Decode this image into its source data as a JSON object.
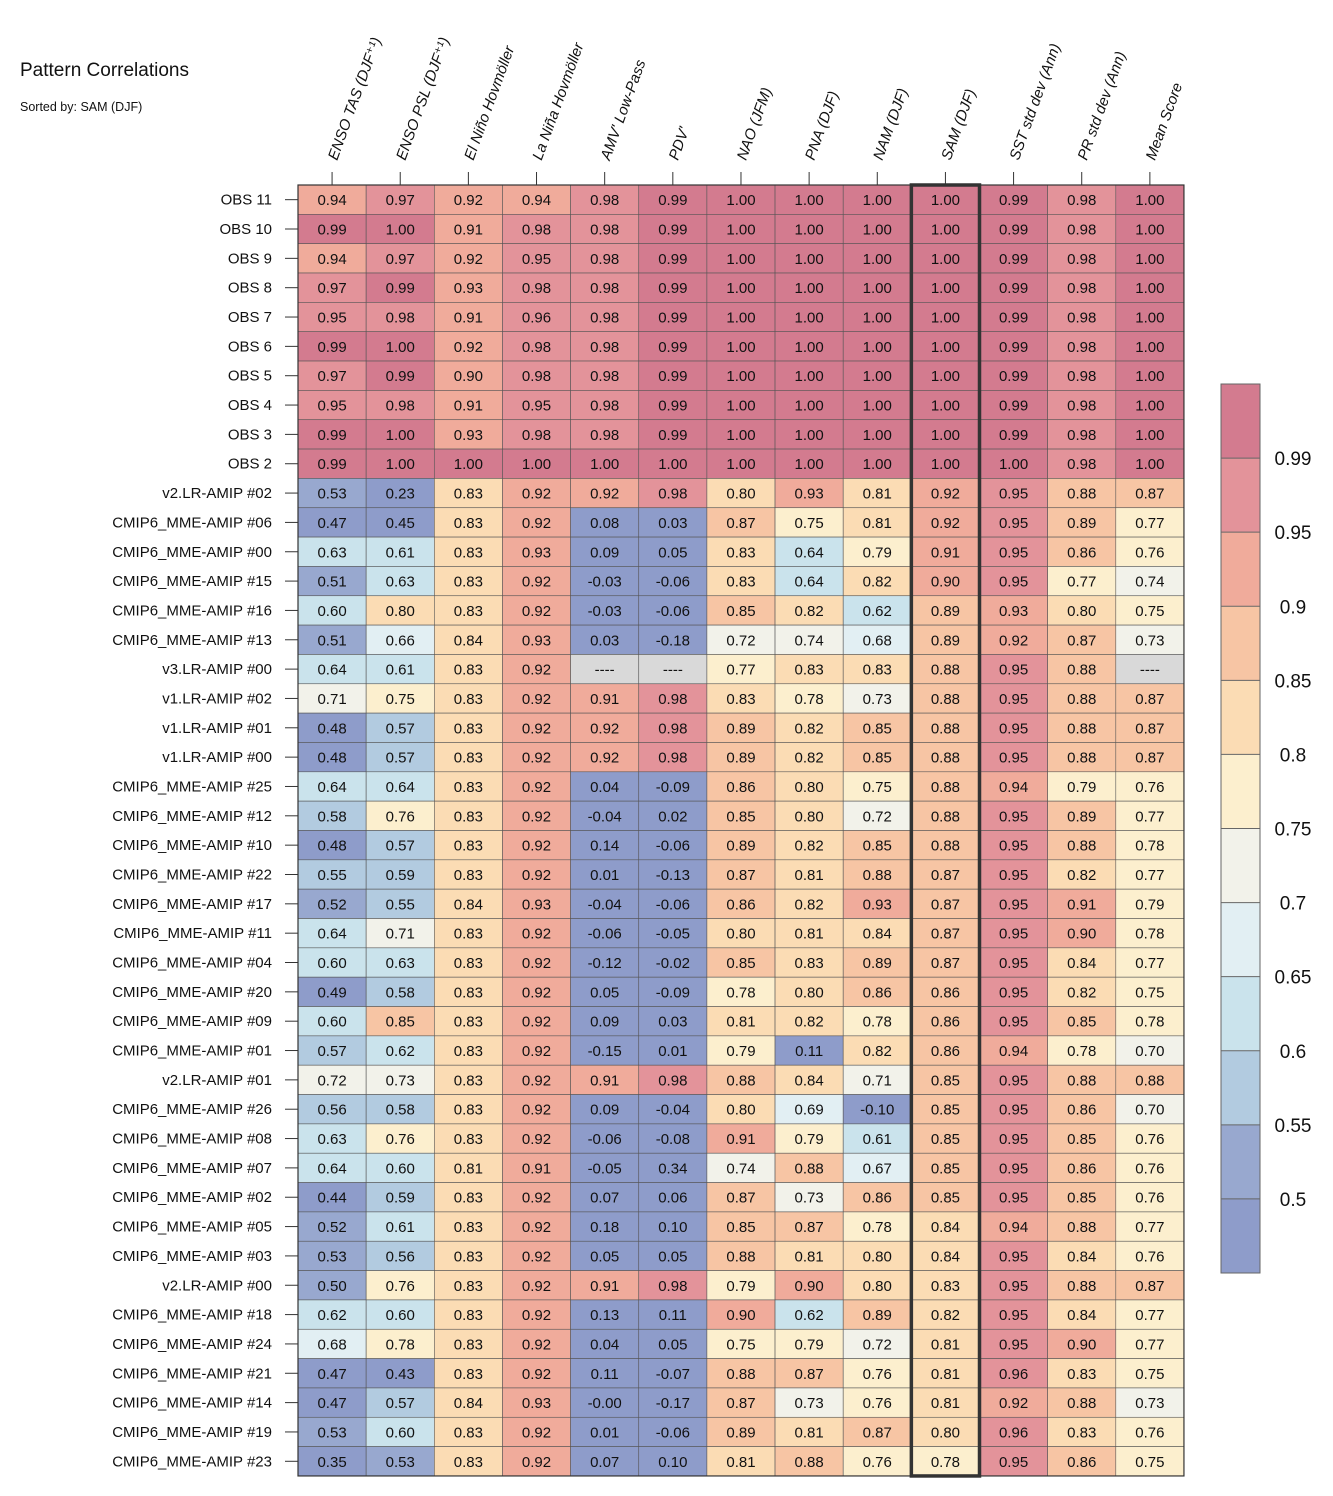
{
  "title": "Pattern Correlations",
  "subtitle": "Sorted by: SAM (DJF)",
  "chart_data": {
    "type": "heatmap",
    "title": "Pattern Correlations",
    "sorted_by": "SAM (DJF)",
    "highlight_column": "SAM (DJF)",
    "columns": [
      "ENSO TAS (DJF⁺¹)",
      "ENSO PSL (DJF⁺¹)",
      "El Niño Hovmöller",
      "La Niña Hovmöller",
      "AMV' Low-Pass",
      "PDV'",
      "NAO (JFM)",
      "PNA (DJF)",
      "NAM (DJF)",
      "SAM (DJF)",
      "SST std dev (Ann)",
      "PR std dev (Ann)",
      "Mean Score"
    ],
    "rows": [
      {
        "label": "OBS 11",
        "values": [
          "0.94",
          "0.97",
          "0.92",
          "0.94",
          "0.98",
          "0.99",
          "1.00",
          "1.00",
          "1.00",
          "1.00",
          "0.99",
          "0.98",
          "1.00"
        ]
      },
      {
        "label": "OBS 10",
        "values": [
          "0.99",
          "1.00",
          "0.91",
          "0.98",
          "0.98",
          "0.99",
          "1.00",
          "1.00",
          "1.00",
          "1.00",
          "0.99",
          "0.98",
          "1.00"
        ]
      },
      {
        "label": "OBS 9",
        "values": [
          "0.94",
          "0.97",
          "0.92",
          "0.95",
          "0.98",
          "0.99",
          "1.00",
          "1.00",
          "1.00",
          "1.00",
          "0.99",
          "0.98",
          "1.00"
        ]
      },
      {
        "label": "OBS 8",
        "values": [
          "0.97",
          "0.99",
          "0.93",
          "0.98",
          "0.98",
          "0.99",
          "1.00",
          "1.00",
          "1.00",
          "1.00",
          "0.99",
          "0.98",
          "1.00"
        ]
      },
      {
        "label": "OBS 7",
        "values": [
          "0.95",
          "0.98",
          "0.91",
          "0.96",
          "0.98",
          "0.99",
          "1.00",
          "1.00",
          "1.00",
          "1.00",
          "0.99",
          "0.98",
          "1.00"
        ]
      },
      {
        "label": "OBS 6",
        "values": [
          "0.99",
          "1.00",
          "0.92",
          "0.98",
          "0.98",
          "0.99",
          "1.00",
          "1.00",
          "1.00",
          "1.00",
          "0.99",
          "0.98",
          "1.00"
        ]
      },
      {
        "label": "OBS 5",
        "values": [
          "0.97",
          "0.99",
          "0.90",
          "0.98",
          "0.98",
          "0.99",
          "1.00",
          "1.00",
          "1.00",
          "1.00",
          "0.99",
          "0.98",
          "1.00"
        ]
      },
      {
        "label": "OBS 4",
        "values": [
          "0.95",
          "0.98",
          "0.91",
          "0.95",
          "0.98",
          "0.99",
          "1.00",
          "1.00",
          "1.00",
          "1.00",
          "0.99",
          "0.98",
          "1.00"
        ]
      },
      {
        "label": "OBS 3",
        "values": [
          "0.99",
          "1.00",
          "0.93",
          "0.98",
          "0.98",
          "0.99",
          "1.00",
          "1.00",
          "1.00",
          "1.00",
          "0.99",
          "0.98",
          "1.00"
        ]
      },
      {
        "label": "OBS 2",
        "values": [
          "0.99",
          "1.00",
          "1.00",
          "1.00",
          "1.00",
          "1.00",
          "1.00",
          "1.00",
          "1.00",
          "1.00",
          "1.00",
          "0.98",
          "1.00"
        ]
      },
      {
        "label": "v2.LR-AMIP  #02",
        "values": [
          "0.53",
          "0.23",
          "0.83",
          "0.92",
          "0.92",
          "0.98",
          "0.80",
          "0.93",
          "0.81",
          "0.92",
          "0.95",
          "0.88",
          "0.87"
        ]
      },
      {
        "label": "CMIP6_MME-AMIP  #06",
        "values": [
          "0.47",
          "0.45",
          "0.83",
          "0.92",
          "0.08",
          "0.03",
          "0.87",
          "0.75",
          "0.81",
          "0.92",
          "0.95",
          "0.89",
          "0.77"
        ]
      },
      {
        "label": "CMIP6_MME-AMIP  #00",
        "values": [
          "0.63",
          "0.61",
          "0.83",
          "0.93",
          "0.09",
          "0.05",
          "0.83",
          "0.64",
          "0.79",
          "0.91",
          "0.95",
          "0.86",
          "0.76"
        ]
      },
      {
        "label": "CMIP6_MME-AMIP  #15",
        "values": [
          "0.51",
          "0.63",
          "0.83",
          "0.92",
          "-0.03",
          "-0.06",
          "0.83",
          "0.64",
          "0.82",
          "0.90",
          "0.95",
          "0.77",
          "0.74"
        ]
      },
      {
        "label": "CMIP6_MME-AMIP  #16",
        "values": [
          "0.60",
          "0.80",
          "0.83",
          "0.92",
          "-0.03",
          "-0.06",
          "0.85",
          "0.82",
          "0.62",
          "0.89",
          "0.93",
          "0.80",
          "0.75"
        ]
      },
      {
        "label": "CMIP6_MME-AMIP  #13",
        "values": [
          "0.51",
          "0.66",
          "0.84",
          "0.93",
          "0.03",
          "-0.18",
          "0.72",
          "0.74",
          "0.68",
          "0.89",
          "0.92",
          "0.87",
          "0.73"
        ]
      },
      {
        "label": "v3.LR-AMIP  #00",
        "values": [
          "0.64",
          "0.61",
          "0.83",
          "0.92",
          "----",
          "----",
          "0.77",
          "0.83",
          "0.83",
          "0.88",
          "0.95",
          "0.88",
          "----"
        ]
      },
      {
        "label": "v1.LR-AMIP  #02",
        "values": [
          "0.71",
          "0.75",
          "0.83",
          "0.92",
          "0.91",
          "0.98",
          "0.83",
          "0.78",
          "0.73",
          "0.88",
          "0.95",
          "0.88",
          "0.87"
        ]
      },
      {
        "label": "v1.LR-AMIP  #01",
        "values": [
          "0.48",
          "0.57",
          "0.83",
          "0.92",
          "0.92",
          "0.98",
          "0.89",
          "0.82",
          "0.85",
          "0.88",
          "0.95",
          "0.88",
          "0.87"
        ]
      },
      {
        "label": "v1.LR-AMIP  #00",
        "values": [
          "0.48",
          "0.57",
          "0.83",
          "0.92",
          "0.92",
          "0.98",
          "0.89",
          "0.82",
          "0.85",
          "0.88",
          "0.95",
          "0.88",
          "0.87"
        ]
      },
      {
        "label": "CMIP6_MME-AMIP  #25",
        "values": [
          "0.64",
          "0.64",
          "0.83",
          "0.92",
          "0.04",
          "-0.09",
          "0.86",
          "0.80",
          "0.75",
          "0.88",
          "0.94",
          "0.79",
          "0.76"
        ]
      },
      {
        "label": "CMIP6_MME-AMIP  #12",
        "values": [
          "0.58",
          "0.76",
          "0.83",
          "0.92",
          "-0.04",
          "0.02",
          "0.85",
          "0.80",
          "0.72",
          "0.88",
          "0.95",
          "0.89",
          "0.77"
        ]
      },
      {
        "label": "CMIP6_MME-AMIP  #10",
        "values": [
          "0.48",
          "0.57",
          "0.83",
          "0.92",
          "0.14",
          "-0.06",
          "0.89",
          "0.82",
          "0.85",
          "0.88",
          "0.95",
          "0.88",
          "0.78"
        ]
      },
      {
        "label": "CMIP6_MME-AMIP  #22",
        "values": [
          "0.55",
          "0.59",
          "0.83",
          "0.92",
          "0.01",
          "-0.13",
          "0.87",
          "0.81",
          "0.88",
          "0.87",
          "0.95",
          "0.82",
          "0.77"
        ]
      },
      {
        "label": "CMIP6_MME-AMIP  #17",
        "values": [
          "0.52",
          "0.55",
          "0.84",
          "0.93",
          "-0.04",
          "-0.06",
          "0.86",
          "0.82",
          "0.93",
          "0.87",
          "0.95",
          "0.91",
          "0.79"
        ]
      },
      {
        "label": "CMIP6_MME-AMIP  #11",
        "values": [
          "0.64",
          "0.71",
          "0.83",
          "0.92",
          "-0.06",
          "-0.05",
          "0.80",
          "0.81",
          "0.84",
          "0.87",
          "0.95",
          "0.90",
          "0.78"
        ]
      },
      {
        "label": "CMIP6_MME-AMIP  #04",
        "values": [
          "0.60",
          "0.63",
          "0.83",
          "0.92",
          "-0.12",
          "-0.02",
          "0.85",
          "0.83",
          "0.89",
          "0.87",
          "0.95",
          "0.84",
          "0.77"
        ]
      },
      {
        "label": "CMIP6_MME-AMIP  #20",
        "values": [
          "0.49",
          "0.58",
          "0.83",
          "0.92",
          "0.05",
          "-0.09",
          "0.78",
          "0.80",
          "0.86",
          "0.86",
          "0.95",
          "0.82",
          "0.75"
        ]
      },
      {
        "label": "CMIP6_MME-AMIP  #09",
        "values": [
          "0.60",
          "0.85",
          "0.83",
          "0.92",
          "0.09",
          "0.03",
          "0.81",
          "0.82",
          "0.78",
          "0.86",
          "0.95",
          "0.85",
          "0.78"
        ]
      },
      {
        "label": "CMIP6_MME-AMIP  #01",
        "values": [
          "0.57",
          "0.62",
          "0.83",
          "0.92",
          "-0.15",
          "0.01",
          "0.79",
          "0.11",
          "0.82",
          "0.86",
          "0.94",
          "0.78",
          "0.70"
        ]
      },
      {
        "label": "v2.LR-AMIP  #01",
        "values": [
          "0.72",
          "0.73",
          "0.83",
          "0.92",
          "0.91",
          "0.98",
          "0.88",
          "0.84",
          "0.71",
          "0.85",
          "0.95",
          "0.88",
          "0.88"
        ]
      },
      {
        "label": "CMIP6_MME-AMIP  #26",
        "values": [
          "0.56",
          "0.58",
          "0.83",
          "0.92",
          "0.09",
          "-0.04",
          "0.80",
          "0.69",
          "-0.10",
          "0.85",
          "0.95",
          "0.86",
          "0.70"
        ]
      },
      {
        "label": "CMIP6_MME-AMIP  #08",
        "values": [
          "0.63",
          "0.76",
          "0.83",
          "0.92",
          "-0.06",
          "-0.08",
          "0.91",
          "0.79",
          "0.61",
          "0.85",
          "0.95",
          "0.85",
          "0.76"
        ]
      },
      {
        "label": "CMIP6_MME-AMIP  #07",
        "values": [
          "0.64",
          "0.60",
          "0.81",
          "0.91",
          "-0.05",
          "0.34",
          "0.74",
          "0.88",
          "0.67",
          "0.85",
          "0.95",
          "0.86",
          "0.76"
        ]
      },
      {
        "label": "CMIP6_MME-AMIP  #02",
        "values": [
          "0.44",
          "0.59",
          "0.83",
          "0.92",
          "0.07",
          "0.06",
          "0.87",
          "0.73",
          "0.86",
          "0.85",
          "0.95",
          "0.85",
          "0.76"
        ]
      },
      {
        "label": "CMIP6_MME-AMIP  #05",
        "values": [
          "0.52",
          "0.61",
          "0.83",
          "0.92",
          "0.18",
          "0.10",
          "0.85",
          "0.87",
          "0.78",
          "0.84",
          "0.94",
          "0.88",
          "0.77"
        ]
      },
      {
        "label": "CMIP6_MME-AMIP  #03",
        "values": [
          "0.53",
          "0.56",
          "0.83",
          "0.92",
          "0.05",
          "0.05",
          "0.88",
          "0.81",
          "0.80",
          "0.84",
          "0.95",
          "0.84",
          "0.76"
        ]
      },
      {
        "label": "v2.LR-AMIP  #00",
        "values": [
          "0.50",
          "0.76",
          "0.83",
          "0.92",
          "0.91",
          "0.98",
          "0.79",
          "0.90",
          "0.80",
          "0.83",
          "0.95",
          "0.88",
          "0.87"
        ]
      },
      {
        "label": "CMIP6_MME-AMIP  #18",
        "values": [
          "0.62",
          "0.60",
          "0.83",
          "0.92",
          "0.13",
          "0.11",
          "0.90",
          "0.62",
          "0.89",
          "0.82",
          "0.95",
          "0.84",
          "0.77"
        ]
      },
      {
        "label": "CMIP6_MME-AMIP  #24",
        "values": [
          "0.68",
          "0.78",
          "0.83",
          "0.92",
          "0.04",
          "0.05",
          "0.75",
          "0.79",
          "0.72",
          "0.81",
          "0.95",
          "0.90",
          "0.77"
        ]
      },
      {
        "label": "CMIP6_MME-AMIP  #21",
        "values": [
          "0.47",
          "0.43",
          "0.83",
          "0.92",
          "0.11",
          "-0.07",
          "0.88",
          "0.87",
          "0.76",
          "0.81",
          "0.96",
          "0.83",
          "0.75"
        ]
      },
      {
        "label": "CMIP6_MME-AMIP  #14",
        "values": [
          "0.47",
          "0.57",
          "0.84",
          "0.93",
          "-0.00",
          "-0.17",
          "0.87",
          "0.73",
          "0.76",
          "0.81",
          "0.92",
          "0.88",
          "0.73"
        ]
      },
      {
        "label": "CMIP6_MME-AMIP  #19",
        "values": [
          "0.53",
          "0.60",
          "0.83",
          "0.92",
          "0.01",
          "-0.06",
          "0.89",
          "0.81",
          "0.87",
          "0.80",
          "0.96",
          "0.83",
          "0.76"
        ]
      },
      {
        "label": "CMIP6_MME-AMIP  #23",
        "values": [
          "0.35",
          "0.53",
          "0.83",
          "0.92",
          "0.07",
          "0.10",
          "0.81",
          "0.88",
          "0.76",
          "0.78",
          "0.95",
          "0.86",
          "0.75"
        ]
      }
    ],
    "colorbar": {
      "ticks": [
        "0.99",
        "0.95",
        "0.9",
        "0.85",
        "0.8",
        "0.75",
        "0.7",
        "0.65",
        "0.6",
        "0.55",
        "0.5"
      ],
      "boundaries": [
        0.99,
        0.95,
        0.9,
        0.85,
        0.8,
        0.75,
        0.7,
        0.65,
        0.6,
        0.55,
        0.5
      ],
      "colors": [
        "#d37b8f",
        "#e3939a",
        "#f0ab9b",
        "#f7c5a4",
        "#fbdcb4",
        "#fcefce",
        "#f2f2ea",
        "#e2eff3",
        "#cae3ec",
        "#b2cbe0",
        "#98a8cf",
        "#8e9cca"
      ],
      "missing_color": "#d9d9d9"
    }
  }
}
